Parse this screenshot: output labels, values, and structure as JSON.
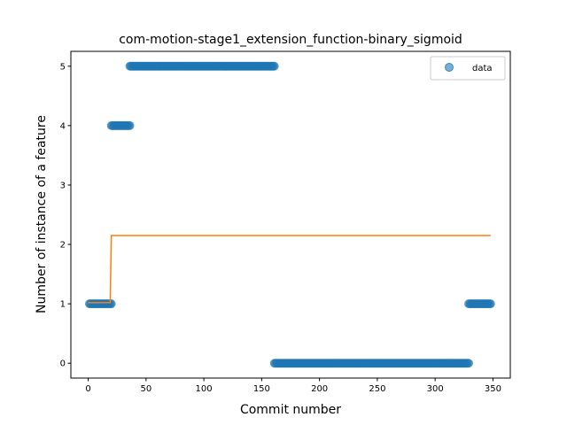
{
  "chart_data": {
    "type": "scatter",
    "title": "com-motion-stage1_extension_function-binary_sigmoid",
    "xlabel": "Commit number",
    "ylabel": "Number of instance of a feature",
    "xlim": [
      -15,
      365
    ],
    "ylim": [
      -0.25,
      5.25
    ],
    "xticks": [
      0,
      50,
      100,
      150,
      200,
      250,
      300,
      350
    ],
    "yticks": [
      0,
      1,
      2,
      3,
      4,
      5
    ],
    "legend": {
      "placement": "top-right",
      "entries": [
        "data"
      ]
    },
    "grid": false,
    "colors": {
      "data": "#1f77b4",
      "fit": "#ff7f0e"
    },
    "series": [
      {
        "name": "data",
        "kind": "scatter",
        "runs": [
          {
            "x_start": 1,
            "x_end": 20,
            "y": 1
          },
          {
            "x_start": 20,
            "x_end": 36,
            "y": 4
          },
          {
            "x_start": 36,
            "x_end": 161,
            "y": 5
          },
          {
            "x_start": 161,
            "x_end": 329,
            "y": 0
          },
          {
            "x_start": 329,
            "x_end": 348,
            "y": 1
          }
        ]
      },
      {
        "kind": "line",
        "x": [
          0,
          19,
          20,
          348
        ],
        "y": [
          1.02,
          1.02,
          2.15,
          2.15
        ]
      }
    ]
  }
}
